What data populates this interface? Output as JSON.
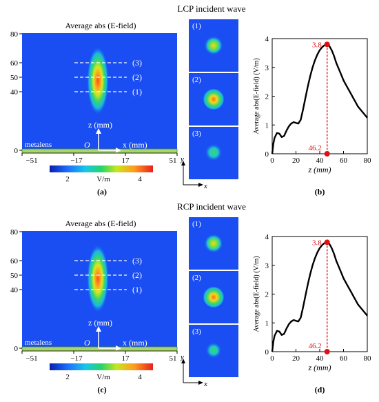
{
  "panels": [
    {
      "wave_title": "LCP incident wave",
      "map_title": "Average abs (E-field)",
      "y_ticks": [
        "0",
        "40",
        "50",
        "60",
        "80"
      ],
      "x_ticks": [
        "−51",
        "−17",
        "17",
        "51"
      ],
      "line_labels": [
        "(1)",
        "(2)",
        "(3)"
      ],
      "z_axis_label": "z (mm)",
      "origin_label": "O",
      "x_axis_label": "x (mm)",
      "metalens_label": "metalens",
      "colorbar_min": "2",
      "colorbar_unit": "V/m",
      "colorbar_max": "4",
      "map_caption": "(a)",
      "spot_labels": [
        "(1)",
        "(2)",
        "(3)"
      ],
      "xy_y": "y",
      "xy_x": "x",
      "plot_caption": "(b)"
    },
    {
      "wave_title": "RCP incident wave",
      "map_title": "Average abs (E-field)",
      "y_ticks": [
        "0",
        "40",
        "50",
        "60",
        "80"
      ],
      "x_ticks": [
        "−51",
        "−17",
        "17",
        "51"
      ],
      "line_labels": [
        "(1)",
        "(2)",
        "(3)"
      ],
      "z_axis_label": "z (mm)",
      "origin_label": "O",
      "x_axis_label": "x (mm)",
      "metalens_label": "metalens",
      "colorbar_min": "2",
      "colorbar_unit": "V/m",
      "colorbar_max": "4",
      "map_caption": "(c)",
      "spot_labels": [
        "(1)",
        "(2)",
        "(3)"
      ],
      "xy_y": "y",
      "xy_x": "x",
      "plot_caption": "(d)"
    }
  ],
  "chart_data": [
    {
      "type": "line",
      "xlabel": "z (mm)",
      "ylabel": "Average abs(E-field) (V/m)",
      "xlim": [
        0,
        80
      ],
      "ylim": [
        0,
        4
      ],
      "x_ticks": [
        0,
        20,
        40,
        60,
        80
      ],
      "y_ticks": [
        0,
        1,
        2,
        3,
        4
      ],
      "x": [
        0,
        1,
        2,
        4,
        6,
        8,
        10,
        12,
        14,
        16,
        18,
        20,
        22,
        24,
        26,
        28,
        30,
        32,
        34,
        36,
        38,
        40,
        42,
        44,
        46.2,
        48,
        50,
        52,
        54,
        56,
        58,
        60,
        62,
        64,
        66,
        68,
        70,
        72,
        74,
        76,
        78,
        80
      ],
      "y": [
        0.0,
        0.35,
        0.55,
        0.72,
        0.7,
        0.58,
        0.62,
        0.8,
        0.95,
        1.05,
        1.1,
        1.07,
        1.05,
        1.18,
        1.55,
        1.95,
        2.35,
        2.7,
        3.0,
        3.25,
        3.45,
        3.6,
        3.7,
        3.77,
        3.8,
        3.75,
        3.6,
        3.4,
        3.15,
        2.95,
        2.75,
        2.55,
        2.4,
        2.25,
        2.1,
        1.95,
        1.8,
        1.65,
        1.55,
        1.45,
        1.35,
        1.25
      ],
      "peak": {
        "x": 46.2,
        "y": 3.8,
        "x_label": "46.2",
        "y_label": "3.8"
      }
    },
    {
      "type": "line",
      "xlabel": "z (mm)",
      "ylabel": "Average abs(E-field) (V/m)",
      "xlim": [
        0,
        80
      ],
      "ylim": [
        0,
        4
      ],
      "x_ticks": [
        0,
        20,
        40,
        60,
        80
      ],
      "y_ticks": [
        0,
        1,
        2,
        3,
        4
      ],
      "x": [
        0,
        1,
        2,
        4,
        6,
        8,
        10,
        12,
        14,
        16,
        18,
        20,
        22,
        24,
        26,
        28,
        30,
        32,
        34,
        36,
        38,
        40,
        42,
        44,
        46.2,
        48,
        50,
        52,
        54,
        56,
        58,
        60,
        62,
        64,
        66,
        68,
        70,
        72,
        74,
        76,
        78,
        80
      ],
      "y": [
        0.0,
        0.35,
        0.55,
        0.72,
        0.7,
        0.58,
        0.62,
        0.8,
        0.95,
        1.05,
        1.1,
        1.07,
        1.05,
        1.18,
        1.55,
        1.95,
        2.35,
        2.7,
        3.0,
        3.25,
        3.45,
        3.6,
        3.7,
        3.77,
        3.8,
        3.75,
        3.6,
        3.4,
        3.15,
        2.95,
        2.75,
        2.55,
        2.4,
        2.25,
        2.1,
        1.95,
        1.8,
        1.65,
        1.55,
        1.45,
        1.35,
        1.25
      ],
      "peak": {
        "x": 46.2,
        "y": 3.8,
        "x_label": "46.2",
        "y_label": "3.8"
      }
    }
  ]
}
